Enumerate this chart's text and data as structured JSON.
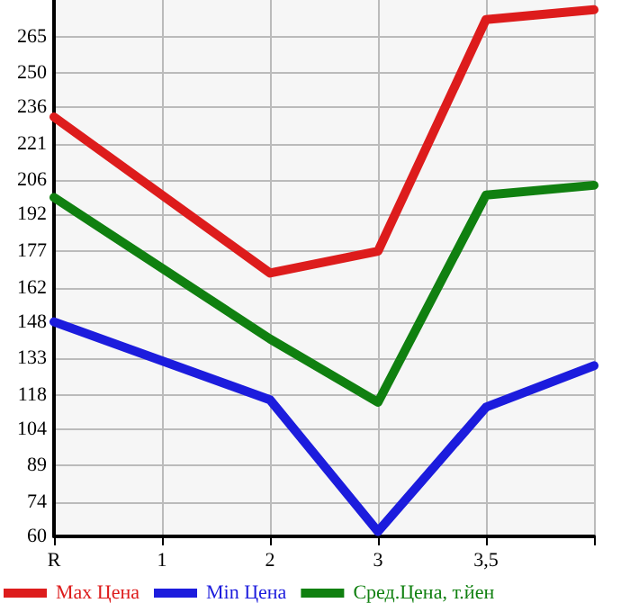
{
  "chart_data": {
    "type": "line",
    "categories": [
      "R",
      "1",
      "2",
      "3",
      "3,5",
      null
    ],
    "series": [
      {
        "name": "Max Цена",
        "color": "#dd1c1c",
        "values": [
          232,
          null,
          168,
          177,
          272,
          276
        ]
      },
      {
        "name": "Min Цена",
        "color": "#1c1cdd",
        "values": [
          148,
          null,
          116,
          62,
          113,
          130
        ]
      },
      {
        "name": "Сред.Цена, т.йен",
        "color": "#108010",
        "values": [
          199,
          null,
          141,
          115,
          200,
          204
        ]
      }
    ],
    "ylim": [
      60,
      280
    ],
    "yticks": [
      60,
      74,
      89,
      104,
      118,
      133,
      148,
      162,
      177,
      192,
      206,
      221,
      236,
      250,
      265
    ],
    "grid": true,
    "legend": "bottom",
    "marker": "none",
    "line_style": "solid"
  }
}
